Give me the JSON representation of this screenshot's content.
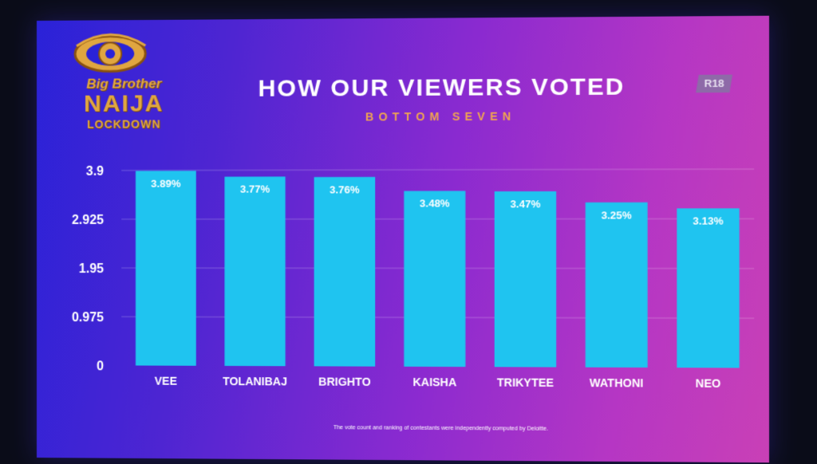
{
  "header": {
    "logo_line1": "Big Brother",
    "logo_line2": "NAIJA",
    "logo_line3": "LOCKDOWN",
    "title": "HOW OUR VIEWERS VOTED",
    "subtitle": "BOTTOM SEVEN",
    "rating_badge": "R18"
  },
  "footnote": "The vote count and ranking of contestants were independently computed by Deloitte.",
  "colors": {
    "bar": "#1fc4f0",
    "bar_highlight": "#2fd8fb",
    "label": "#ffffff",
    "subtitle": "#f0a550",
    "logo": "#e0a640"
  },
  "chart_data": {
    "type": "bar",
    "categories": [
      "VEE",
      "TOLANIBAJ",
      "BRIGHTO",
      "KAISHA",
      "TRIKYTEE",
      "WATHONI",
      "NEO"
    ],
    "values": [
      3.89,
      3.77,
      3.76,
      3.48,
      3.47,
      3.25,
      3.13
    ],
    "data_labels": [
      "3.89%",
      "3.77%",
      "3.76%",
      "3.48%",
      "3.47%",
      "3.25%",
      "3.13%"
    ],
    "yticks": [
      "0",
      "0.975",
      "1.95",
      "2.925",
      "3.9"
    ],
    "ylim": [
      0,
      3.9
    ],
    "grid": true,
    "title": "HOW OUR VIEWERS VOTED",
    "subtitle": "BOTTOM SEVEN"
  }
}
